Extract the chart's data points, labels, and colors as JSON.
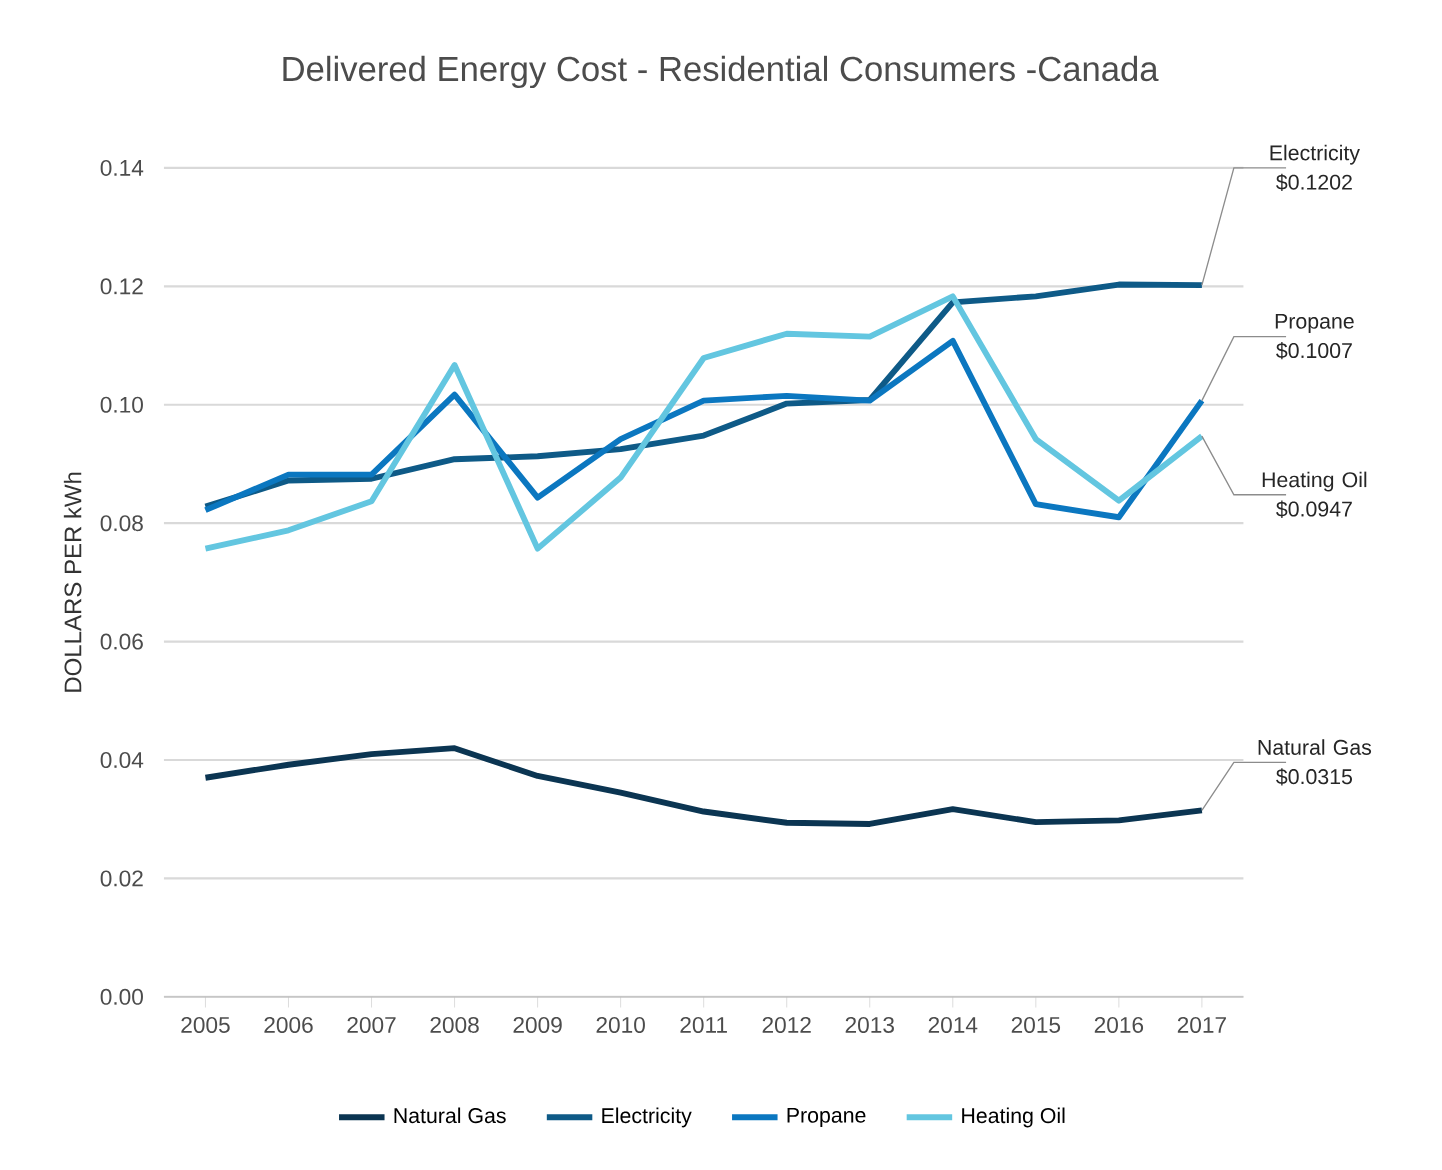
{
  "chart_data": {
    "type": "line",
    "title": "Delivered Energy Cost - Residential Consumers -Canada",
    "ylabel": "DOLLARS PER kWh",
    "categories": [
      "2005",
      "2006",
      "2007",
      "2008",
      "2009",
      "2010",
      "2011",
      "2012",
      "2013",
      "2014",
      "2015",
      "2016",
      "2017"
    ],
    "series": [
      {
        "name": "Natural Gas",
        "color": "#0b3552",
        "values": [
          0.037,
          0.0392,
          0.041,
          0.042,
          0.0373,
          0.0345,
          0.0313,
          0.0294,
          0.0292,
          0.0317,
          0.0295,
          0.0298,
          0.0315
        ]
      },
      {
        "name": "Electricity",
        "color": "#0e5a87",
        "values": [
          0.0828,
          0.0872,
          0.0875,
          0.0908,
          0.0913,
          0.0925,
          0.0948,
          0.1002,
          0.1008,
          0.1173,
          0.1183,
          0.1203,
          0.1202
        ]
      },
      {
        "name": "Propane",
        "color": "#0b77c0",
        "values": [
          0.0822,
          0.0882,
          0.0882,
          0.1017,
          0.0843,
          0.0942,
          0.1007,
          0.1015,
          0.1007,
          0.1108,
          0.0832,
          0.081,
          0.1007
        ]
      },
      {
        "name": "Heating Oil",
        "color": "#63c6e0",
        "values": [
          0.0757,
          0.0788,
          0.0837,
          0.1067,
          0.0757,
          0.0877,
          0.1079,
          0.112,
          0.1115,
          0.1183,
          0.0942,
          0.0838,
          0.0947
        ]
      }
    ],
    "ylim": [
      0,
      0.14
    ],
    "yticks": [
      {
        "value": 0,
        "label": "0.00"
      },
      {
        "value": 0.02,
        "label": "0.02"
      },
      {
        "value": 0.04,
        "label": "0.04"
      },
      {
        "value": 0.06,
        "label": "0.06"
      },
      {
        "value": 0.08,
        "label": "0.08"
      },
      {
        "value": 0.1,
        "label": "0.10"
      },
      {
        "value": 0.12,
        "label": "0.12"
      },
      {
        "value": 0.14,
        "label": "0.14"
      }
    ],
    "grid": "y",
    "legend": "bottom",
    "marker": "none",
    "line_style": "solid",
    "annotations": [
      {
        "text": "Electricity $0.1202",
        "x": "2017",
        "y": 0.1202
      },
      {
        "text": "Propane $0.1007",
        "x": "2017",
        "y": 0.1007
      },
      {
        "text": "Heating Oil $0.0947",
        "x": "2017",
        "y": 0.0947
      },
      {
        "text": "Natural Gas $0.0315",
        "x": "2017",
        "y": 0.0315
      }
    ]
  }
}
